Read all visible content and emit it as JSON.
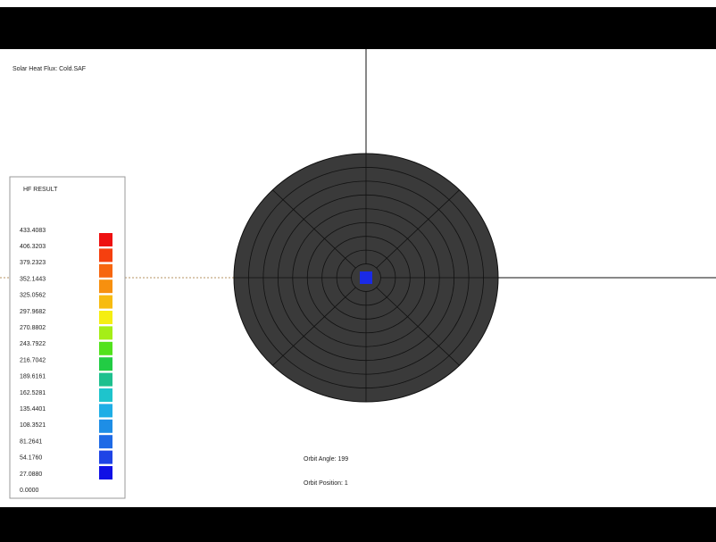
{
  "header": {
    "title": "Solar Heat Flux: Cold.SAF"
  },
  "legend": {
    "title": "HF RESULT",
    "labels": [
      "433.4083",
      "406.3203",
      "379.2323",
      "352.1443",
      "325.0562",
      "297.9682",
      "270.8802",
      "243.7922",
      "216.7042",
      "189.6161",
      "162.5281",
      "135.4401",
      "108.3521",
      "81.2641",
      "54.1760",
      "27.0880",
      "0.0000"
    ],
    "colors": [
      "#ee1111",
      "#f5400f",
      "#f7660f",
      "#f7900f",
      "#f7bb10",
      "#f5ee12",
      "#a5ee17",
      "#52e21c",
      "#22cc44",
      "#1ec08e",
      "#1ec4cc",
      "#1eaee6",
      "#1e8ee6",
      "#1e6ae6",
      "#1e44e6",
      "#1010e6"
    ]
  },
  "status": {
    "orbit_angle": "Orbit Angle: 199",
    "orbit_position": "Orbit Position: 1"
  }
}
